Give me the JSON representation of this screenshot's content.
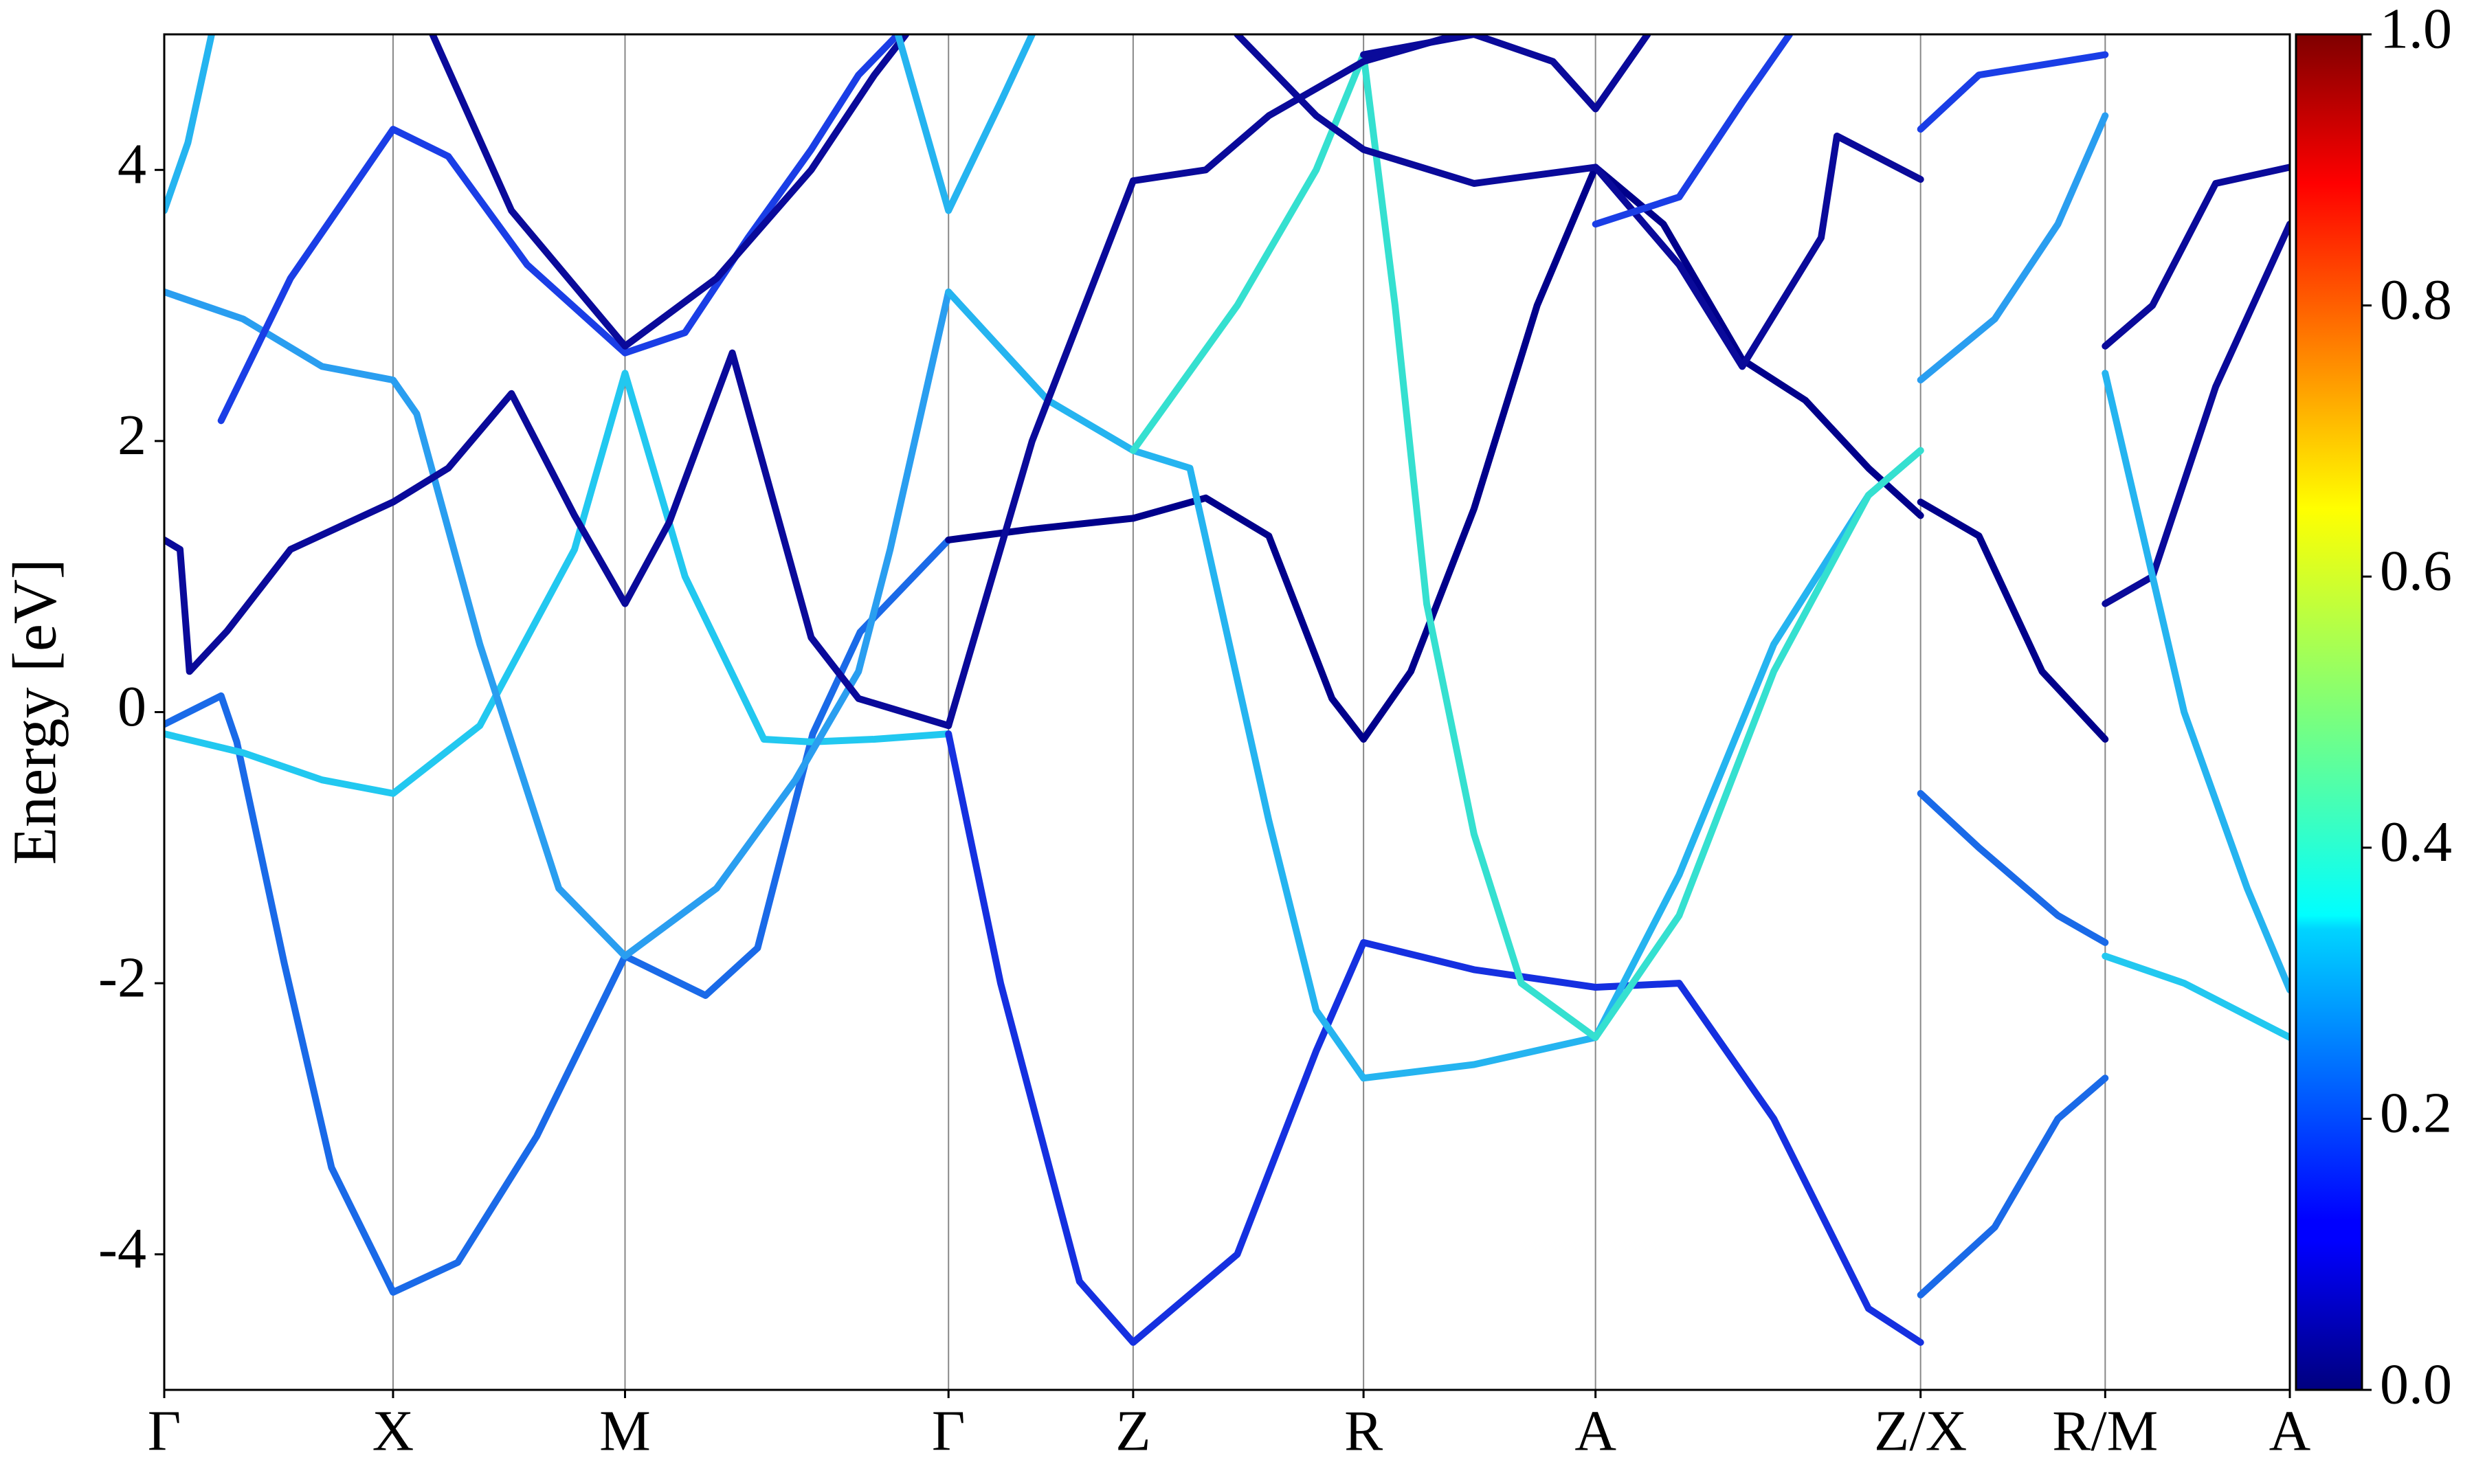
{
  "chart_data": {
    "type": "line",
    "ylabel": "Energy [eV]",
    "xlim": [
      0,
      13.47
    ],
    "ylim": [
      -5,
      5
    ],
    "xticks": [
      {
        "value": 0,
        "label": "Γ"
      },
      {
        "value": 1.45,
        "label": "X"
      },
      {
        "value": 2.92,
        "label": "M"
      },
      {
        "value": 4.97,
        "label": "Γ"
      },
      {
        "value": 6.14,
        "label": "Z"
      },
      {
        "value": 7.6,
        "label": "R"
      },
      {
        "value": 9.07,
        "label": "A"
      },
      {
        "value": 11.13,
        "label": "Z/X"
      },
      {
        "value": 12.3,
        "label": "R/M"
      },
      {
        "value": 13.47,
        "label": "A"
      }
    ],
    "yticks": [
      -4,
      -2,
      0,
      2,
      4
    ],
    "colorbar": {
      "lim": [
        0,
        1
      ],
      "ticks": [
        {
          "value": 0,
          "label": "0.0"
        },
        {
          "value": 0.2,
          "label": "0.2"
        },
        {
          "value": 0.4,
          "label": "0.4"
        },
        {
          "value": 0.6,
          "label": "0.6"
        },
        {
          "value": 0.8,
          "label": "0.8"
        },
        {
          "value": 1,
          "label": "1.0"
        }
      ]
    },
    "series": [
      {
        "color": "#1a6ae8",
        "x": [
          0,
          0.36,
          0.46,
          0.76,
          1.06,
          1.45,
          1.86,
          2.36,
          2.92,
          3.43,
          3.76,
          4.11,
          4.41,
          4.97
        ],
        "values": [
          -0.09,
          0.12,
          -0.22,
          -1.85,
          -3.36,
          -4.28,
          -4.06,
          -3.13,
          -1.8,
          -2.09,
          -1.74,
          -0.16,
          0.59,
          1.27
        ]
      },
      {
        "color": "#22c8f0",
        "x": [
          0,
          0.5,
          1.0,
          1.45,
          2.0,
          2.6,
          2.92,
          3.3,
          3.8,
          4.1,
          4.5,
          4.97
        ],
        "values": [
          -0.16,
          -0.3,
          -0.5,
          -0.6,
          -0.1,
          1.2,
          2.5,
          1.0,
          -0.2,
          -0.22,
          -0.2,
          -0.16
        ]
      },
      {
        "color": "#2a9ef0",
        "x": [
          0,
          0.5,
          1.0,
          1.45,
          1.6,
          2.0,
          2.5,
          2.92,
          3.5,
          4.0,
          4.4,
          4.6,
          4.97
        ],
        "values": [
          3.1,
          2.9,
          2.55,
          2.45,
          2.2,
          0.5,
          -1.3,
          -1.8,
          -1.3,
          -0.5,
          0.3,
          1.2,
          3.1
        ]
      },
      {
        "color": "#0a0a9a",
        "x": [
          0,
          0.1,
          0.16,
          0.4,
          0.8,
          1.45,
          1.8,
          2.2,
          2.6,
          2.92,
          3.2,
          3.6,
          4.1,
          4.4,
          4.97
        ],
        "values": [
          1.27,
          1.2,
          0.3,
          0.6,
          1.2,
          1.55,
          1.8,
          2.35,
          1.45,
          0.8,
          1.4,
          2.65,
          0.55,
          0.1,
          -0.1
        ]
      },
      {
        "color": "#1a3ee6",
        "x": [
          0.36,
          0.8,
          1.45,
          1.8,
          2.3,
          2.92,
          3.3,
          3.7,
          4.1,
          4.4,
          4.65
        ],
        "values": [
          2.15,
          3.2,
          4.3,
          4.1,
          3.3,
          2.65,
          2.8,
          3.5,
          4.15,
          4.7,
          5.0
        ]
      },
      {
        "color": "#25b4f0",
        "x": [
          0,
          0.15,
          0.3
        ],
        "values": [
          3.7,
          4.2,
          5.0
        ]
      },
      {
        "color": "#0a0a9a",
        "x": [
          1.7,
          2.2,
          2.92,
          3.5,
          4.1,
          4.5,
          4.7
        ],
        "values": [
          5.0,
          3.7,
          2.7,
          3.2,
          4.0,
          4.7,
          5.0
        ]
      },
      {
        "color": "#25b4f0",
        "x": [
          4.65,
          4.97,
          5.3,
          5.5
        ],
        "values": [
          5.0,
          3.7,
          4.5,
          5.0
        ]
      },
      {
        "color": "#00008b",
        "x": [
          4.97,
          5.5,
          6.14,
          6.6,
          7.0,
          7.4,
          7.6,
          7.9,
          8.3,
          8.7,
          9.07,
          9.5,
          10.0,
          10.4,
          10.8,
          11.13
        ],
        "values": [
          1.27,
          1.35,
          1.43,
          1.58,
          1.3,
          0.1,
          -0.2,
          0.3,
          1.5,
          3.0,
          4.02,
          3.6,
          2.6,
          2.3,
          1.8,
          1.45
        ]
      },
      {
        "color": "#1530e0",
        "x": [
          4.97,
          5.3,
          5.8,
          6.14,
          6.8,
          7.3,
          7.6,
          8.3,
          9.07,
          9.6,
          10.2,
          10.8,
          11.13
        ],
        "values": [
          -0.16,
          -2.0,
          -4.2,
          -4.65,
          -4.0,
          -2.5,
          -1.7,
          -1.9,
          -2.03,
          -2.0,
          -3.0,
          -4.4,
          -4.65
        ]
      },
      {
        "color": "#25b4f0",
        "x": [
          4.97,
          5.6,
          6.14,
          6.5,
          7.0,
          7.3,
          7.6,
          8.3,
          9.07,
          9.6,
          10.2,
          10.8,
          11.13
        ],
        "values": [
          3.1,
          2.3,
          1.93,
          1.8,
          -0.8,
          -2.2,
          -2.7,
          -2.6,
          -2.4,
          -1.2,
          0.5,
          1.6,
          1.93
        ]
      },
      {
        "color": "#35e0d0",
        "x": [
          6.14,
          6.8,
          7.3,
          7.6,
          7.8,
          8.0,
          8.3,
          8.6,
          9.07,
          9.6,
          10.2,
          10.8,
          11.13
        ],
        "values": [
          1.93,
          3.0,
          4.0,
          4.85,
          3.0,
          0.8,
          -0.9,
          -2.0,
          -2.4,
          -1.5,
          0.3,
          1.6,
          1.93
        ]
      },
      {
        "color": "#0a0a9a",
        "x": [
          4.97,
          5.5,
          6.14,
          6.6,
          7.0,
          7.6,
          8.2
        ],
        "values": [
          -0.1,
          2.0,
          3.92,
          4.0,
          4.4,
          4.8,
          5.0
        ]
      },
      {
        "color": "#0a0a9a",
        "x": [
          6.8,
          7.3,
          7.6,
          8.3,
          9.07,
          9.6,
          10.0,
          10.5,
          10.6,
          11.13
        ],
        "values": [
          5.0,
          4.4,
          4.15,
          3.9,
          4.02,
          3.3,
          2.55,
          3.5,
          4.25,
          3.93
        ]
      },
      {
        "color": "#1a3ee6",
        "x": [
          9.07,
          9.6,
          10.0,
          10.3
        ],
        "values": [
          3.6,
          3.8,
          4.5,
          5.0
        ]
      },
      {
        "color": "#0a0a9a",
        "x": [
          7.6,
          8.3,
          8.8,
          9.07,
          9.4
        ],
        "values": [
          4.85,
          5.0,
          4.8,
          4.45,
          5.0
        ]
      },
      {
        "color": "#1a6ae8",
        "x": [
          11.13,
          11.5,
          12.0,
          12.3
        ],
        "values": [
          -0.6,
          -1.0,
          -1.5,
          -1.7
        ]
      },
      {
        "color": "#22c8f0",
        "x": [
          12.3,
          12.8,
          13.47
        ],
        "values": [
          -1.8,
          -2.0,
          -2.4
        ]
      },
      {
        "color": "#1a6ae8",
        "x": [
          11.13,
          11.6,
          12.0,
          12.3
        ],
        "values": [
          -4.3,
          -3.8,
          -3.0,
          -2.7
        ]
      },
      {
        "color": "#2a9ef0",
        "x": [
          11.13,
          11.6,
          12.0,
          12.3
        ],
        "values": [
          2.45,
          2.9,
          3.6,
          4.4
        ]
      },
      {
        "color": "#00008b",
        "x": [
          11.13,
          11.5,
          11.9,
          12.3
        ],
        "values": [
          1.55,
          1.3,
          0.3,
          -0.2
        ]
      },
      {
        "color": "#0a0a9a",
        "x": [
          12.3,
          12.6,
          13.0,
          13.47
        ],
        "values": [
          0.8,
          1.0,
          2.4,
          3.6
        ]
      },
      {
        "color": "#0a0a9a",
        "x": [
          12.3,
          12.6,
          13.0,
          13.47
        ],
        "values": [
          2.7,
          3.0,
          3.9,
          4.02
        ]
      },
      {
        "color": "#25b4f0",
        "x": [
          12.3,
          12.5,
          12.8,
          13.2,
          13.47
        ],
        "values": [
          2.5,
          1.5,
          0,
          -1.3,
          -2.05
        ]
      },
      {
        "color": "#1a3ee6",
        "x": [
          11.13,
          11.5,
          12.3
        ],
        "values": [
          4.3,
          4.7,
          4.85
        ]
      }
    ]
  }
}
